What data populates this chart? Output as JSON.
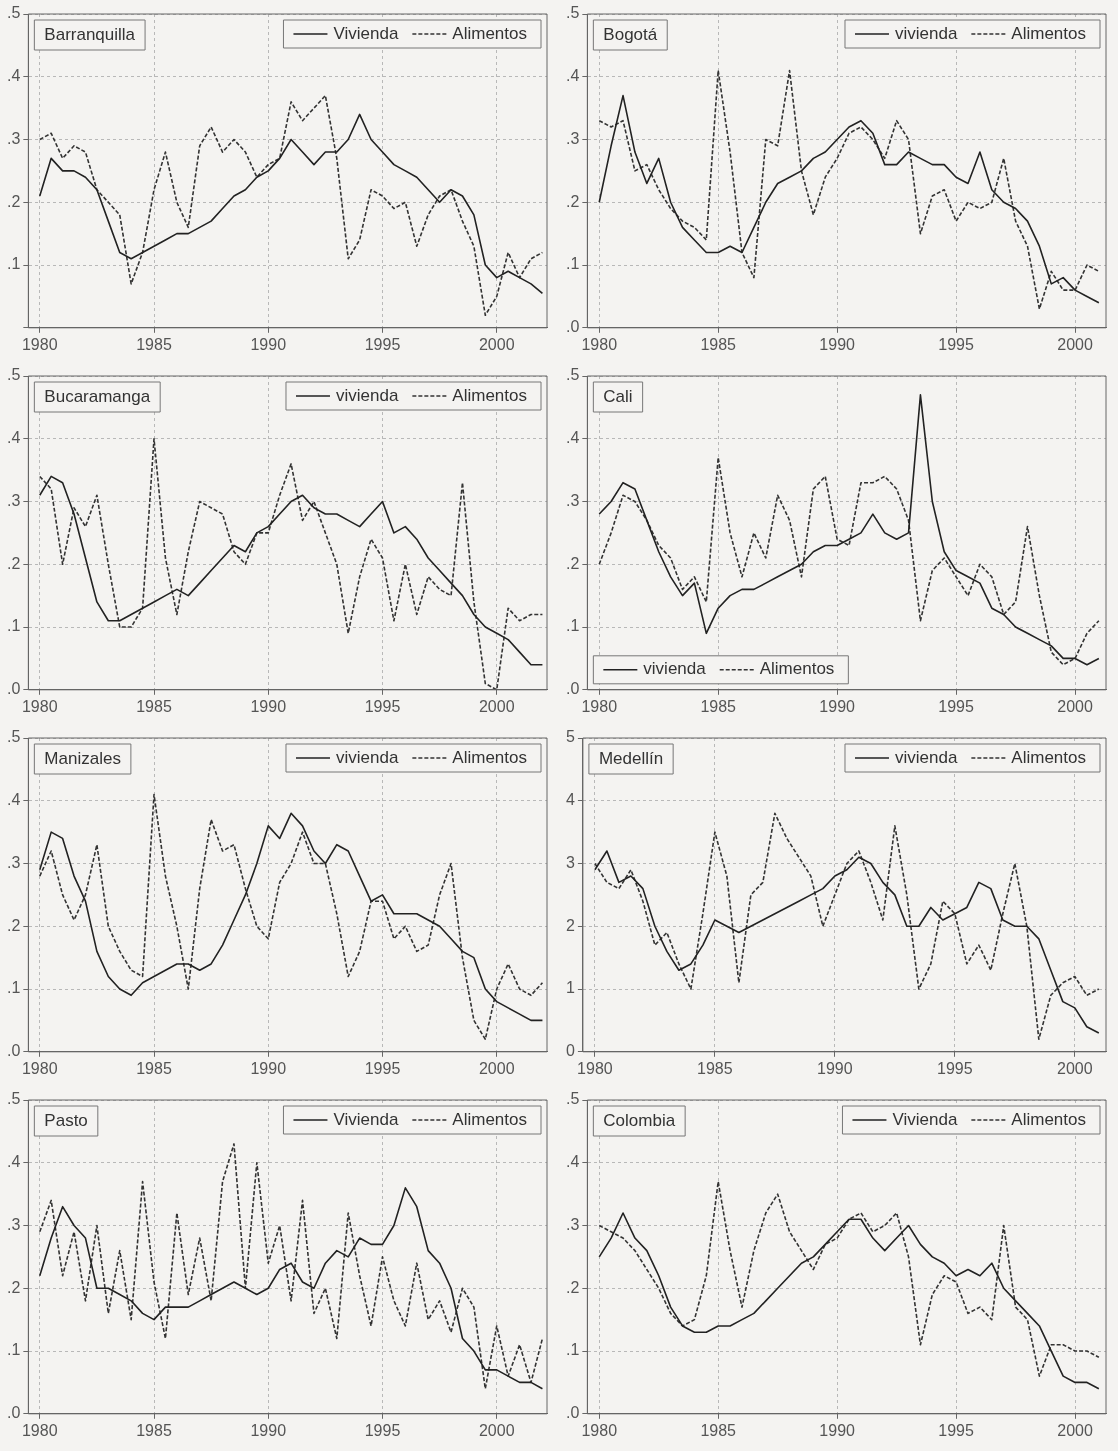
{
  "chart_data": [
    {
      "type": "line",
      "title": "Barranquilla",
      "legend": "top right",
      "grid": true,
      "x": [
        1980,
        1980.5,
        1981,
        1981.5,
        1982,
        1982.5,
        1983,
        1983.5,
        1984,
        1984.5,
        1985,
        1985.5,
        1986,
        1986.5,
        1987,
        1987.5,
        1988,
        1988.5,
        1989,
        1989.5,
        1990,
        1990.5,
        1991,
        1991.5,
        1992,
        1992.5,
        1993,
        1993.5,
        1994,
        1994.5,
        1995,
        1995.5,
        1996,
        1996.5,
        1997,
        1997.5,
        1998,
        1998.5,
        1999,
        1999.5,
        2000,
        2000.5,
        2001,
        2001.5,
        2002
      ],
      "xlim": [
        1979.5,
        2002.2
      ],
      "xticks": [
        1980,
        1985,
        1990,
        1995,
        2000
      ],
      "ylim": [
        0,
        0.5
      ],
      "yticks": [
        {
          "value": 0,
          "label": null
        },
        {
          "value": 0.1,
          "label": ".1"
        },
        {
          "value": 0.2,
          "label": ".2"
        },
        {
          "value": 0.3,
          "label": ".3"
        },
        {
          "value": 0.4,
          "label": ".4"
        },
        {
          "value": 0.5,
          "label": ".5"
        }
      ],
      "series": [
        {
          "name": "Vivienda",
          "color": "#222222",
          "line_style": "solid",
          "values": [
            0.21,
            0.27,
            0.25,
            0.25,
            0.24,
            0.22,
            0.17,
            0.12,
            0.11,
            0.12,
            0.13,
            0.14,
            0.15,
            0.15,
            0.16,
            0.17,
            0.19,
            0.21,
            0.22,
            0.24,
            0.25,
            0.27,
            0.3,
            0.28,
            0.26,
            0.28,
            0.28,
            0.3,
            0.34,
            0.3,
            0.28,
            0.26,
            0.25,
            0.24,
            0.22,
            0.2,
            0.22,
            0.21,
            0.18,
            0.1,
            0.08,
            0.09,
            0.08,
            0.07,
            0.055
          ]
        },
        {
          "name": "Alimentos",
          "color": "#333333",
          "line_style": "dashed",
          "values": [
            0.3,
            0.31,
            0.27,
            0.29,
            0.28,
            0.22,
            0.2,
            0.18,
            0.07,
            0.12,
            0.22,
            0.28,
            0.2,
            0.16,
            0.29,
            0.32,
            0.28,
            0.3,
            0.28,
            0.24,
            0.26,
            0.27,
            0.36,
            0.33,
            0.35,
            0.37,
            0.27,
            0.11,
            0.14,
            0.22,
            0.21,
            0.19,
            0.2,
            0.13,
            0.18,
            0.21,
            0.22,
            0.17,
            0.13,
            0.02,
            0.05,
            0.12,
            0.08,
            0.11,
            0.12
          ]
        }
      ]
    },
    {
      "type": "line",
      "title": "Bogotá",
      "legend": "top right",
      "grid": true,
      "x": [
        1980,
        1980.5,
        1981,
        1981.5,
        1982,
        1982.5,
        1983,
        1983.5,
        1984,
        1984.5,
        1985,
        1985.5,
        1986,
        1986.5,
        1987,
        1987.5,
        1988,
        1988.5,
        1989,
        1989.5,
        1990,
        1990.5,
        1991,
        1991.5,
        1992,
        1992.5,
        1993,
        1993.5,
        1994,
        1994.5,
        1995,
        1995.5,
        1996,
        1996.5,
        1997,
        1997.5,
        1998,
        1998.5,
        1999,
        1999.5,
        2000,
        2000.5,
        2001
      ],
      "xlim": [
        1979.5,
        2001.3
      ],
      "xticks": [
        1980,
        1985,
        1990,
        1995,
        2000
      ],
      "ylim": [
        0,
        0.5
      ],
      "yticks": [
        {
          "value": 0,
          "label": ".0"
        },
        {
          "value": 0.1,
          "label": ".1"
        },
        {
          "value": 0.2,
          "label": ".2"
        },
        {
          "value": 0.3,
          "label": ".3"
        },
        {
          "value": 0.4,
          "label": ".4"
        },
        {
          "value": 0.5,
          "label": ".5"
        }
      ],
      "series": [
        {
          "name": "vivienda",
          "color": "#222222",
          "line_style": "solid",
          "values": [
            0.2,
            0.29,
            0.37,
            0.28,
            0.23,
            0.27,
            0.2,
            0.16,
            0.14,
            0.12,
            0.12,
            0.13,
            0.12,
            0.16,
            0.2,
            0.23,
            0.24,
            0.25,
            0.27,
            0.28,
            0.3,
            0.32,
            0.33,
            0.31,
            0.26,
            0.26,
            0.28,
            0.27,
            0.26,
            0.26,
            0.24,
            0.23,
            0.28,
            0.22,
            0.2,
            0.19,
            0.17,
            0.13,
            0.07,
            0.08,
            0.06,
            0.05,
            0.04
          ]
        },
        {
          "name": "Alimentos",
          "color": "#333333",
          "line_style": "dashed",
          "values": [
            0.33,
            0.32,
            0.33,
            0.25,
            0.26,
            0.22,
            0.19,
            0.17,
            0.16,
            0.14,
            0.41,
            0.28,
            0.12,
            0.08,
            0.3,
            0.29,
            0.41,
            0.25,
            0.18,
            0.24,
            0.27,
            0.31,
            0.32,
            0.3,
            0.27,
            0.33,
            0.3,
            0.15,
            0.21,
            0.22,
            0.17,
            0.2,
            0.19,
            0.2,
            0.27,
            0.17,
            0.13,
            0.03,
            0.09,
            0.06,
            0.06,
            0.1,
            0.09
          ]
        }
      ]
    },
    {
      "type": "line",
      "title": "Bucaramanga",
      "legend": "top right",
      "grid": true,
      "x": [
        1980,
        1980.5,
        1981,
        1981.5,
        1982,
        1982.5,
        1983,
        1983.5,
        1984,
        1984.5,
        1985,
        1985.5,
        1986,
        1986.5,
        1987,
        1987.5,
        1988,
        1988.5,
        1989,
        1989.5,
        1990,
        1990.5,
        1991,
        1991.5,
        1992,
        1992.5,
        1993,
        1993.5,
        1994,
        1994.5,
        1995,
        1995.5,
        1996,
        1996.5,
        1997,
        1997.5,
        1998,
        1998.5,
        1999,
        1999.5,
        2000,
        2000.5,
        2001,
        2001.5,
        2002
      ],
      "xlim": [
        1979.5,
        2002.2
      ],
      "xticks": [
        1980,
        1985,
        1990,
        1995,
        2000
      ],
      "ylim": [
        0,
        0.5
      ],
      "yticks": [
        {
          "value": 0,
          "label": ".0"
        },
        {
          "value": 0.1,
          "label": ".1"
        },
        {
          "value": 0.2,
          "label": ".2"
        },
        {
          "value": 0.3,
          "label": ".3"
        },
        {
          "value": 0.4,
          "label": ".4"
        },
        {
          "value": 0.5,
          "label": ".5"
        }
      ],
      "series": [
        {
          "name": "vivienda",
          "color": "#222222",
          "line_style": "solid",
          "values": [
            0.31,
            0.34,
            0.33,
            0.28,
            0.21,
            0.14,
            0.11,
            0.11,
            0.12,
            0.13,
            0.14,
            0.15,
            0.16,
            0.15,
            0.17,
            0.19,
            0.21,
            0.23,
            0.22,
            0.25,
            0.26,
            0.28,
            0.3,
            0.31,
            0.29,
            0.28,
            0.28,
            0.27,
            0.26,
            0.28,
            0.3,
            0.25,
            0.26,
            0.24,
            0.21,
            0.19,
            0.17,
            0.15,
            0.12,
            0.1,
            0.09,
            0.08,
            0.06,
            0.04,
            0.04
          ]
        },
        {
          "name": "Alimentos",
          "color": "#333333",
          "line_style": "dashed",
          "values": [
            0.34,
            0.32,
            0.2,
            0.29,
            0.26,
            0.31,
            0.2,
            0.1,
            0.1,
            0.13,
            0.4,
            0.21,
            0.12,
            0.22,
            0.3,
            0.29,
            0.28,
            0.22,
            0.2,
            0.25,
            0.25,
            0.31,
            0.36,
            0.27,
            0.3,
            0.25,
            0.2,
            0.09,
            0.18,
            0.24,
            0.21,
            0.11,
            0.2,
            0.12,
            0.18,
            0.16,
            0.15,
            0.33,
            0.14,
            0.01,
            0.0,
            0.13,
            0.11,
            0.12,
            0.12
          ]
        }
      ]
    },
    {
      "type": "line",
      "title": "Cali",
      "legend": "bottom left",
      "grid": true,
      "x": [
        1980,
        1980.5,
        1981,
        1981.5,
        1982,
        1982.5,
        1983,
        1983.5,
        1984,
        1984.5,
        1985,
        1985.5,
        1986,
        1986.5,
        1987,
        1987.5,
        1988,
        1988.5,
        1989,
        1989.5,
        1990,
        1990.5,
        1991,
        1991.5,
        1992,
        1992.5,
        1993,
        1993.5,
        1994,
        1994.5,
        1995,
        1995.5,
        1996,
        1996.5,
        1997,
        1997.5,
        1998,
        1998.5,
        1999,
        1999.5,
        2000,
        2000.5,
        2001
      ],
      "xlim": [
        1979.5,
        2001.3
      ],
      "xticks": [
        1980,
        1985,
        1990,
        1995,
        2000
      ],
      "ylim": [
        0,
        0.5
      ],
      "yticks": [
        {
          "value": 0,
          "label": ".0"
        },
        {
          "value": 0.1,
          "label": ".1"
        },
        {
          "value": 0.2,
          "label": ".2"
        },
        {
          "value": 0.3,
          "label": ".3"
        },
        {
          "value": 0.4,
          "label": ".4"
        },
        {
          "value": 0.5,
          "label": ".5"
        }
      ],
      "series": [
        {
          "name": "vivienda",
          "color": "#222222",
          "line_style": "solid",
          "values": [
            0.28,
            0.3,
            0.33,
            0.32,
            0.27,
            0.22,
            0.18,
            0.15,
            0.17,
            0.09,
            0.13,
            0.15,
            0.16,
            0.16,
            0.17,
            0.18,
            0.19,
            0.2,
            0.22,
            0.23,
            0.23,
            0.24,
            0.25,
            0.28,
            0.25,
            0.24,
            0.25,
            0.47,
            0.3,
            0.22,
            0.19,
            0.18,
            0.17,
            0.13,
            0.12,
            0.1,
            0.09,
            0.08,
            0.07,
            0.05,
            0.05,
            0.04,
            0.05
          ]
        },
        {
          "name": "Alimentos",
          "color": "#333333",
          "line_style": "dashed",
          "values": [
            0.2,
            0.25,
            0.31,
            0.3,
            0.27,
            0.23,
            0.21,
            0.16,
            0.18,
            0.14,
            0.37,
            0.25,
            0.18,
            0.25,
            0.21,
            0.31,
            0.27,
            0.18,
            0.32,
            0.34,
            0.24,
            0.23,
            0.33,
            0.33,
            0.34,
            0.32,
            0.27,
            0.11,
            0.19,
            0.21,
            0.18,
            0.15,
            0.2,
            0.18,
            0.12,
            0.14,
            0.26,
            0.15,
            0.06,
            0.04,
            0.05,
            0.09,
            0.11
          ]
        }
      ]
    },
    {
      "type": "line",
      "title": "Manizales",
      "legend": "top right",
      "grid": true,
      "x": [
        1980,
        1980.5,
        1981,
        1981.5,
        1982,
        1982.5,
        1983,
        1983.5,
        1984,
        1984.5,
        1985,
        1985.5,
        1986,
        1986.5,
        1987,
        1987.5,
        1988,
        1988.5,
        1989,
        1989.5,
        1990,
        1990.5,
        1991,
        1991.5,
        1992,
        1992.5,
        1993,
        1993.5,
        1994,
        1994.5,
        1995,
        1995.5,
        1996,
        1996.5,
        1997,
        1997.5,
        1998,
        1998.5,
        1999,
        1999.5,
        2000,
        2000.5,
        2001,
        2001.5,
        2002
      ],
      "xlim": [
        1979.5,
        2002.2
      ],
      "xticks": [
        1980,
        1985,
        1990,
        1995,
        2000
      ],
      "ylim": [
        0,
        0.5
      ],
      "yticks": [
        {
          "value": 0,
          "label": ".0"
        },
        {
          "value": 0.1,
          "label": ".1"
        },
        {
          "value": 0.2,
          "label": ".2"
        },
        {
          "value": 0.3,
          "label": ".3"
        },
        {
          "value": 0.4,
          "label": ".4"
        },
        {
          "value": 0.5,
          "label": ".5"
        }
      ],
      "series": [
        {
          "name": "vivienda",
          "color": "#222222",
          "line_style": "solid",
          "values": [
            0.29,
            0.35,
            0.34,
            0.28,
            0.24,
            0.16,
            0.12,
            0.1,
            0.09,
            0.11,
            0.12,
            0.13,
            0.14,
            0.14,
            0.13,
            0.14,
            0.17,
            0.21,
            0.25,
            0.3,
            0.36,
            0.34,
            0.38,
            0.36,
            0.32,
            0.3,
            0.33,
            0.32,
            0.28,
            0.24,
            0.25,
            0.22,
            0.22,
            0.22,
            0.21,
            0.2,
            0.18,
            0.16,
            0.15,
            0.1,
            0.08,
            0.07,
            0.06,
            0.05,
            0.05
          ]
        },
        {
          "name": "Alimentos",
          "color": "#333333",
          "line_style": "dashed",
          "values": [
            0.28,
            0.32,
            0.25,
            0.21,
            0.25,
            0.33,
            0.2,
            0.16,
            0.13,
            0.12,
            0.41,
            0.28,
            0.2,
            0.1,
            0.26,
            0.37,
            0.32,
            0.33,
            0.26,
            0.2,
            0.18,
            0.27,
            0.3,
            0.35,
            0.3,
            0.3,
            0.22,
            0.12,
            0.16,
            0.24,
            0.24,
            0.18,
            0.2,
            0.16,
            0.17,
            0.25,
            0.3,
            0.15,
            0.05,
            0.02,
            0.1,
            0.14,
            0.1,
            0.09,
            0.11
          ]
        }
      ]
    },
    {
      "type": "line",
      "title": "Medellín",
      "legend": "top right",
      "grid": true,
      "x": [
        1980,
        1980.5,
        1981,
        1981.5,
        1982,
        1982.5,
        1983,
        1983.5,
        1984,
        1984.5,
        1985,
        1985.5,
        1986,
        1986.5,
        1987,
        1987.5,
        1988,
        1988.5,
        1989,
        1989.5,
        1990,
        1990.5,
        1991,
        1991.5,
        1992,
        1992.5,
        1993,
        1993.5,
        1994,
        1994.5,
        1995,
        1995.5,
        1996,
        1996.5,
        1997,
        1997.5,
        1998,
        1998.5,
        1999,
        1999.5,
        2000,
        2000.5,
        2001
      ],
      "xlim": [
        1979.5,
        2001.3
      ],
      "xticks": [
        1980,
        1985,
        1990,
        1995,
        2000
      ],
      "ylim": [
        0,
        5
      ],
      "yticks": [
        0,
        1,
        2,
        3,
        4,
        5
      ],
      "series": [
        {
          "name": "vivienda",
          "color": "#222222",
          "line_style": "solid",
          "values": [
            2.9,
            3.2,
            2.7,
            2.8,
            2.6,
            2.0,
            1.6,
            1.3,
            1.4,
            1.7,
            2.1,
            2.0,
            1.9,
            2.0,
            2.1,
            2.2,
            2.3,
            2.4,
            2.5,
            2.6,
            2.8,
            2.9,
            3.1,
            3.0,
            2.7,
            2.5,
            2.0,
            2.0,
            2.3,
            2.1,
            2.2,
            2.3,
            2.7,
            2.6,
            2.1,
            2.0,
            2.0,
            1.8,
            1.3,
            0.8,
            0.7,
            0.4,
            0.3
          ]
        },
        {
          "name": "Alimentos",
          "color": "#333333",
          "line_style": "dashed",
          "values": [
            3.0,
            2.7,
            2.6,
            2.9,
            2.4,
            1.7,
            1.9,
            1.4,
            1.0,
            2.2,
            3.5,
            2.8,
            1.1,
            2.5,
            2.7,
            3.8,
            3.4,
            3.1,
            2.8,
            2.0,
            2.5,
            3.0,
            3.2,
            2.7,
            2.1,
            3.6,
            2.5,
            1.0,
            1.4,
            2.4,
            2.2,
            1.4,
            1.7,
            1.3,
            2.2,
            3.0,
            2.0,
            0.2,
            0.9,
            1.1,
            1.2,
            0.9,
            1.0
          ]
        }
      ]
    },
    {
      "type": "line",
      "title": "Pasto",
      "legend": "top right",
      "grid": true,
      "x": [
        1980,
        1980.5,
        1981,
        1981.5,
        1982,
        1982.5,
        1983,
        1983.5,
        1984,
        1984.5,
        1985,
        1985.5,
        1986,
        1986.5,
        1987,
        1987.5,
        1988,
        1988.5,
        1989,
        1989.5,
        1990,
        1990.5,
        1991,
        1991.5,
        1992,
        1992.5,
        1993,
        1993.5,
        1994,
        1994.5,
        1995,
        1995.5,
        1996,
        1996.5,
        1997,
        1997.5,
        1998,
        1998.5,
        1999,
        1999.5,
        2000,
        2000.5,
        2001,
        2001.5,
        2002
      ],
      "xlim": [
        1979.5,
        2002.2
      ],
      "xticks": [
        1980,
        1985,
        1990,
        1995,
        2000
      ],
      "ylim": [
        0,
        0.5
      ],
      "yticks": [
        {
          "value": 0,
          "label": ".0"
        },
        {
          "value": 0.1,
          "label": ".1"
        },
        {
          "value": 0.2,
          "label": ".2"
        },
        {
          "value": 0.3,
          "label": ".3"
        },
        {
          "value": 0.4,
          "label": ".4"
        },
        {
          "value": 0.5,
          "label": ".5"
        }
      ],
      "series": [
        {
          "name": "Vivienda",
          "color": "#222222",
          "line_style": "solid",
          "values": [
            0.22,
            0.28,
            0.33,
            0.3,
            0.28,
            0.2,
            0.2,
            0.19,
            0.18,
            0.16,
            0.15,
            0.17,
            0.17,
            0.17,
            0.18,
            0.19,
            0.2,
            0.21,
            0.2,
            0.19,
            0.2,
            0.23,
            0.24,
            0.21,
            0.2,
            0.24,
            0.26,
            0.25,
            0.28,
            0.27,
            0.27,
            0.3,
            0.36,
            0.33,
            0.26,
            0.24,
            0.2,
            0.12,
            0.1,
            0.07,
            0.07,
            0.06,
            0.05,
            0.05,
            0.04
          ]
        },
        {
          "name": "Alimentos",
          "color": "#333333",
          "line_style": "dashed",
          "values": [
            0.29,
            0.34,
            0.22,
            0.29,
            0.18,
            0.3,
            0.16,
            0.26,
            0.15,
            0.37,
            0.21,
            0.12,
            0.32,
            0.19,
            0.28,
            0.18,
            0.37,
            0.43,
            0.2,
            0.4,
            0.24,
            0.3,
            0.18,
            0.34,
            0.16,
            0.2,
            0.12,
            0.32,
            0.22,
            0.14,
            0.25,
            0.18,
            0.14,
            0.24,
            0.15,
            0.18,
            0.13,
            0.2,
            0.17,
            0.04,
            0.14,
            0.06,
            0.11,
            0.05,
            0.12
          ]
        }
      ]
    },
    {
      "type": "line",
      "title": "Colombia",
      "legend": "top right",
      "grid": true,
      "x": [
        1980,
        1980.5,
        1981,
        1981.5,
        1982,
        1982.5,
        1983,
        1983.5,
        1984,
        1984.5,
        1985,
        1985.5,
        1986,
        1986.5,
        1987,
        1987.5,
        1988,
        1988.5,
        1989,
        1989.5,
        1990,
        1990.5,
        1991,
        1991.5,
        1992,
        1992.5,
        1993,
        1993.5,
        1994,
        1994.5,
        1995,
        1995.5,
        1996,
        1996.5,
        1997,
        1997.5,
        1998,
        1998.5,
        1999,
        1999.5,
        2000,
        2000.5,
        2001
      ],
      "xlim": [
        1979.5,
        2001.3
      ],
      "xticks": [
        1980,
        1985,
        1990,
        1995,
        2000
      ],
      "ylim": [
        0,
        0.5
      ],
      "yticks": [
        {
          "value": 0,
          "label": ".0"
        },
        {
          "value": 0.1,
          "label": ".1"
        },
        {
          "value": 0.2,
          "label": ".2"
        },
        {
          "value": 0.3,
          "label": ".3"
        },
        {
          "value": 0.4,
          "label": ".4"
        },
        {
          "value": 0.5,
          "label": ".5"
        }
      ],
      "series": [
        {
          "name": "Vivienda",
          "color": "#222222",
          "line_style": "solid",
          "values": [
            0.25,
            0.28,
            0.32,
            0.28,
            0.26,
            0.22,
            0.17,
            0.14,
            0.13,
            0.13,
            0.14,
            0.14,
            0.15,
            0.16,
            0.18,
            0.2,
            0.22,
            0.24,
            0.25,
            0.27,
            0.29,
            0.31,
            0.31,
            0.28,
            0.26,
            0.28,
            0.3,
            0.27,
            0.25,
            0.24,
            0.22,
            0.23,
            0.22,
            0.24,
            0.2,
            0.18,
            0.16,
            0.14,
            0.1,
            0.06,
            0.05,
            0.05,
            0.04
          ]
        },
        {
          "name": "Alimentos",
          "color": "#333333",
          "line_style": "dashed",
          "values": [
            0.3,
            0.29,
            0.28,
            0.26,
            0.23,
            0.2,
            0.16,
            0.14,
            0.15,
            0.22,
            0.37,
            0.26,
            0.17,
            0.26,
            0.32,
            0.35,
            0.29,
            0.26,
            0.23,
            0.27,
            0.28,
            0.31,
            0.32,
            0.29,
            0.3,
            0.32,
            0.25,
            0.11,
            0.19,
            0.22,
            0.21,
            0.16,
            0.17,
            0.15,
            0.3,
            0.17,
            0.15,
            0.06,
            0.11,
            0.11,
            0.1,
            0.1,
            0.09
          ]
        }
      ]
    }
  ]
}
